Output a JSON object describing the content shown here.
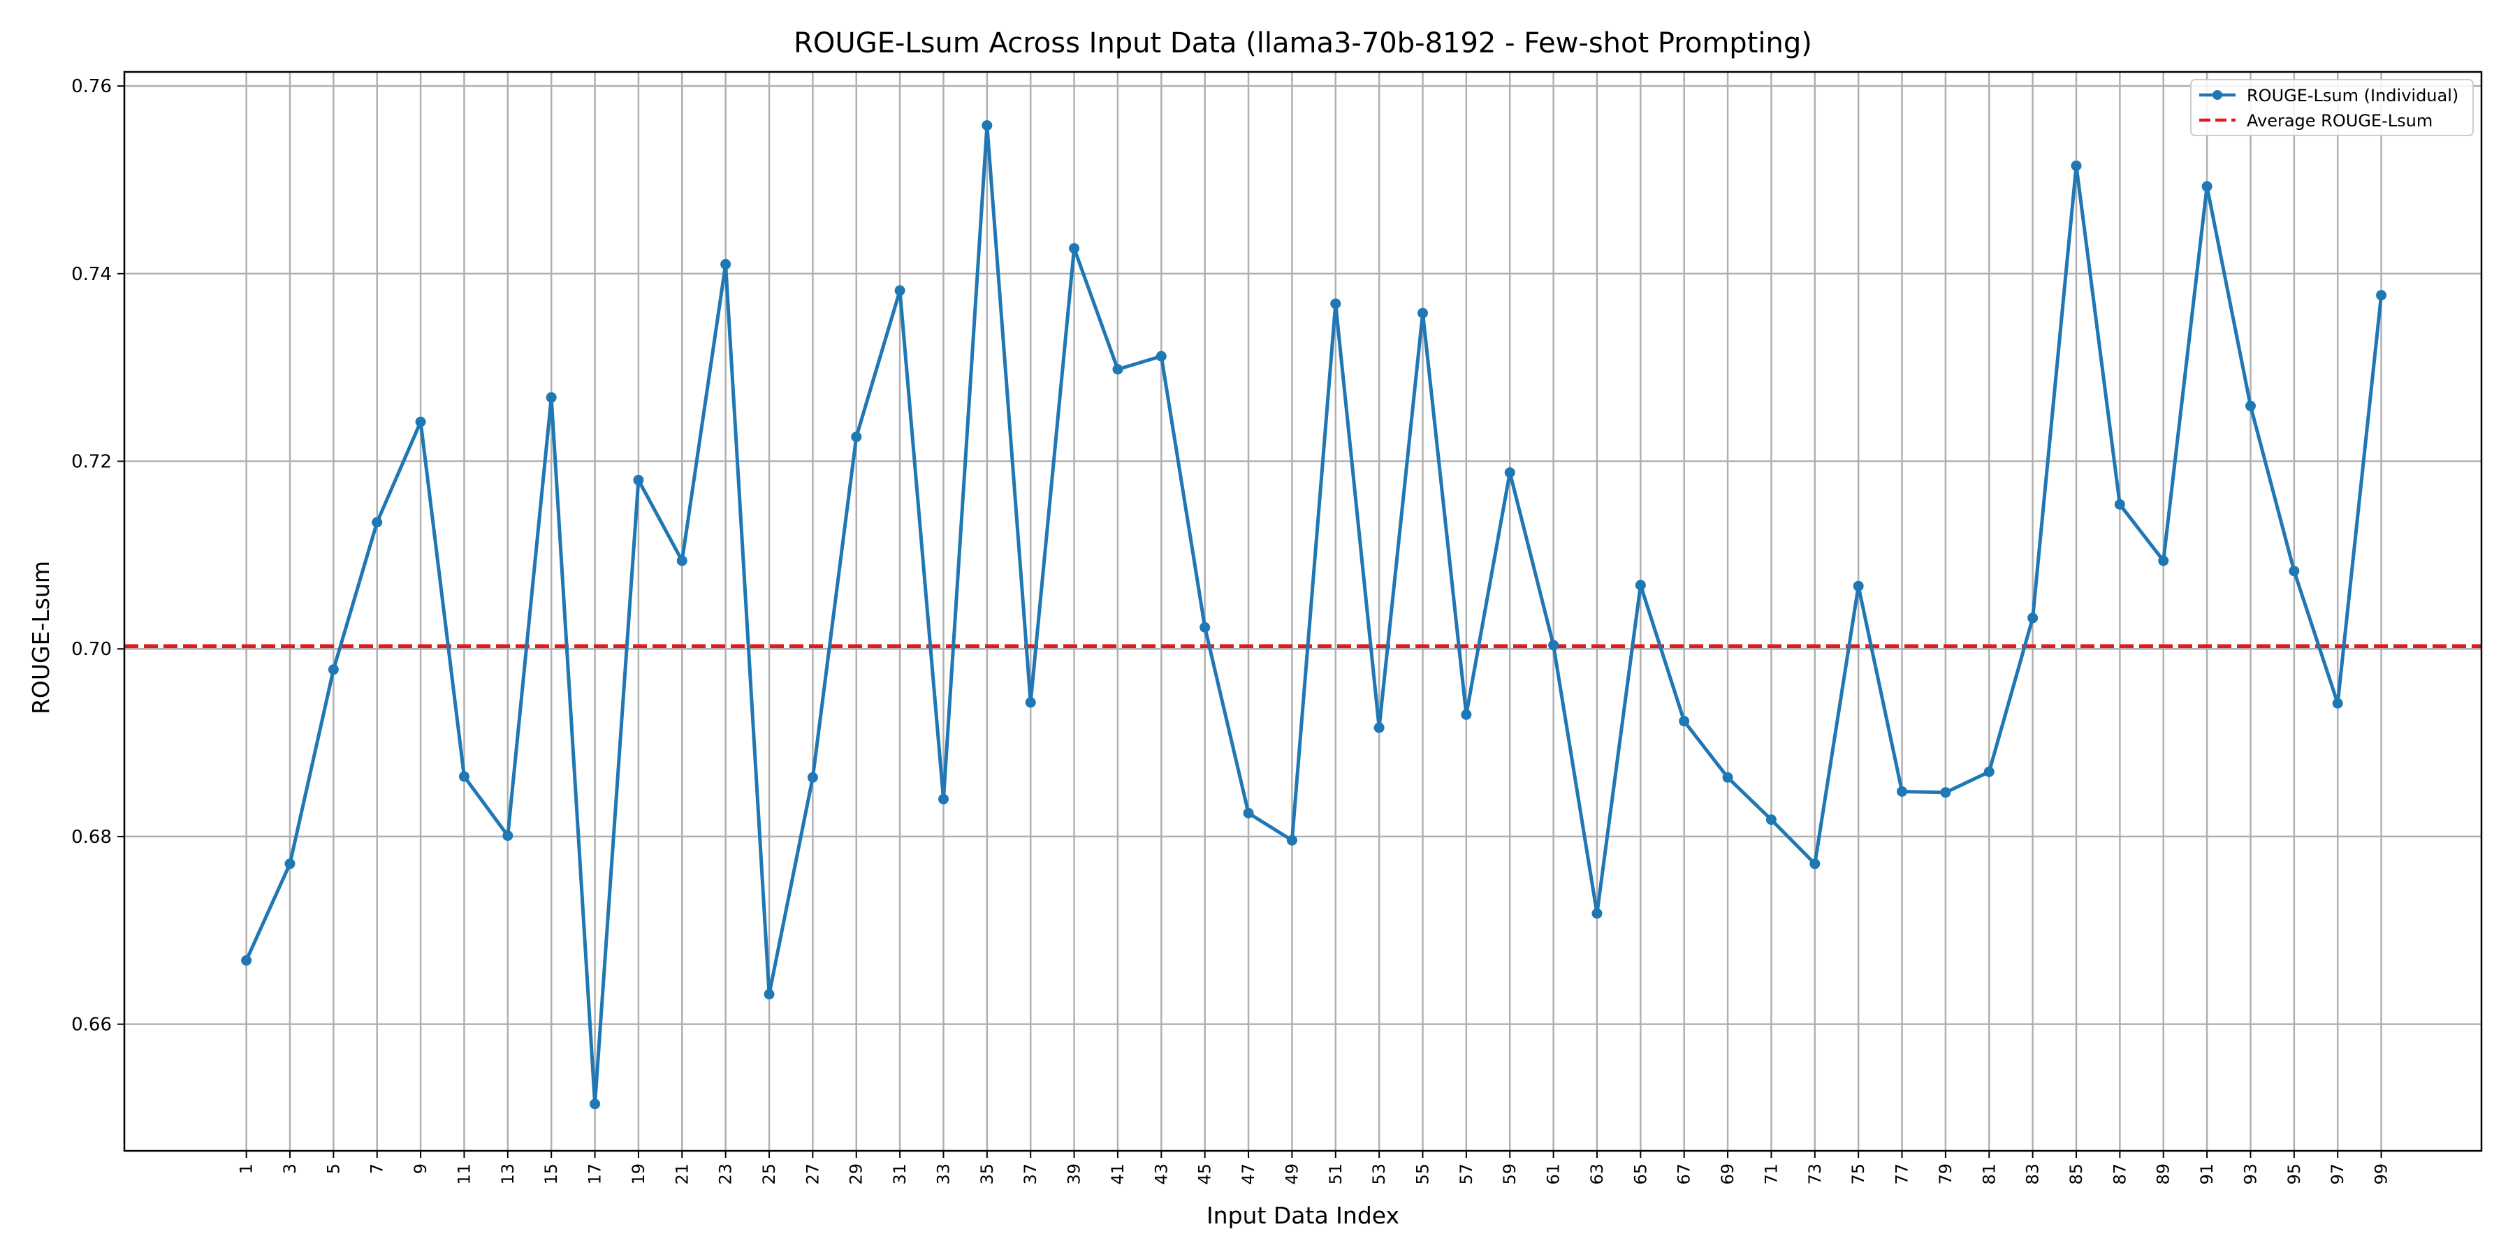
{
  "chart_data": {
    "type": "line",
    "title": "ROUGE-Lsum Across Input Data (llama3-70b-8192 - Few-shot Prompting)",
    "xlabel": "Input Data Index",
    "ylabel": "ROUGE-Lsum",
    "xlim": [
      -4.6,
      103.6
    ],
    "ylim": [
      0.6465,
      0.7615
    ],
    "yticks": [
      0.66,
      0.68,
      0.7,
      0.72,
      0.74,
      0.76
    ],
    "ytick_labels": [
      "0.66",
      "0.68",
      "0.70",
      "0.72",
      "0.74",
      "0.76"
    ],
    "xticks": [
      1,
      3,
      5,
      7,
      9,
      11,
      13,
      15,
      17,
      19,
      21,
      23,
      25,
      27,
      29,
      31,
      33,
      35,
      37,
      39,
      41,
      43,
      45,
      47,
      49,
      51,
      53,
      55,
      57,
      59,
      61,
      63,
      65,
      67,
      69,
      71,
      73,
      75,
      77,
      79,
      81,
      83,
      85,
      87,
      89,
      91,
      93,
      95,
      97,
      99
    ],
    "xtick_labels": [
      "1",
      "3",
      "5",
      "7",
      "9",
      "11",
      "13",
      "15",
      "17",
      "19",
      "21",
      "23",
      "25",
      "27",
      "29",
      "31",
      "33",
      "35",
      "37",
      "39",
      "41",
      "43",
      "45",
      "47",
      "49",
      "51",
      "53",
      "55",
      "57",
      "59",
      "61",
      "63",
      "65",
      "67",
      "69",
      "71",
      "73",
      "75",
      "77",
      "79",
      "81",
      "83",
      "85",
      "87",
      "89",
      "91",
      "93",
      "95",
      "97",
      "99"
    ],
    "grid": true,
    "legend_position": "top-right",
    "series": [
      {
        "name": "ROUGE-Lsum (Individual)",
        "color": "#1f77b4",
        "style": "solid-with-markers",
        "x": [
          1,
          3,
          5,
          7,
          9,
          11,
          13,
          15,
          17,
          19,
          21,
          23,
          25,
          27,
          29,
          31,
          33,
          35,
          37,
          39,
          41,
          43,
          45,
          47,
          49,
          51,
          53,
          55,
          57,
          59,
          61,
          63,
          65,
          67,
          69,
          71,
          73,
          75,
          77,
          79,
          81,
          83,
          85,
          87,
          89,
          91,
          93,
          95,
          97,
          99
        ],
        "values": [
          0.6668,
          0.6771,
          0.6978,
          0.7135,
          0.7242,
          0.6864,
          0.6801,
          0.7268,
          0.6515,
          0.718,
          0.7094,
          0.741,
          0.6632,
          0.6863,
          0.7226,
          0.7382,
          0.684,
          0.7558,
          0.6943,
          0.7427,
          0.7298,
          0.7312,
          0.7023,
          0.6825,
          0.6796,
          0.7368,
          0.6916,
          0.7358,
          0.693,
          0.7188,
          0.7004,
          0.6718,
          0.7068,
          0.6923,
          0.6863,
          0.6818,
          0.6771,
          0.7067,
          0.6848,
          0.6847,
          0.6869,
          0.7033,
          0.7515,
          0.7154,
          0.7094,
          0.7493,
          0.7259,
          0.7083,
          0.6942,
          0.7377
        ]
      },
      {
        "name": "Average ROUGE-Lsum",
        "color": "#e31a1c",
        "style": "dashed",
        "value": 0.7003
      }
    ]
  }
}
